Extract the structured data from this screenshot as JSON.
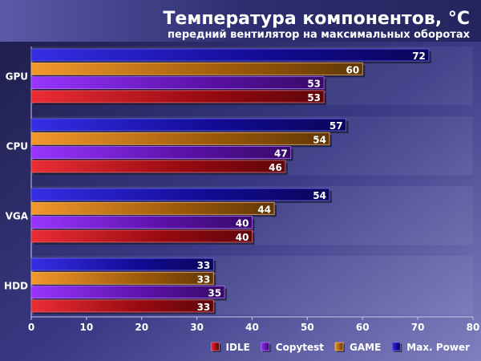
{
  "chart_data": {
    "type": "bar",
    "orientation": "horizontal",
    "title": "Температура компонентов, °C",
    "subtitle": "передний вентилятор на максимальных оборотах",
    "categories": [
      "GPU",
      "CPU",
      "VGA",
      "HDD"
    ],
    "series": [
      {
        "name": "Max. Power",
        "color": "#1a10e0",
        "values": [
          72,
          57,
          54,
          33
        ]
      },
      {
        "name": "GAME",
        "color": "#f08a10",
        "values": [
          60,
          54,
          44,
          33
        ]
      },
      {
        "name": "Copytest",
        "color": "#8a1aff",
        "values": [
          53,
          47,
          40,
          35
        ]
      },
      {
        "name": "IDLE",
        "color": "#e8101a",
        "values": [
          53,
          46,
          40,
          33
        ]
      }
    ],
    "legend_order": [
      "IDLE",
      "Copytest",
      "GAME",
      "Max. Power"
    ],
    "legend_position": "bottom-right",
    "xlim": [
      0,
      80
    ],
    "xticks": [
      0,
      10,
      20,
      30,
      40,
      50,
      60,
      70,
      80
    ],
    "grid": false,
    "data_labels": true
  }
}
